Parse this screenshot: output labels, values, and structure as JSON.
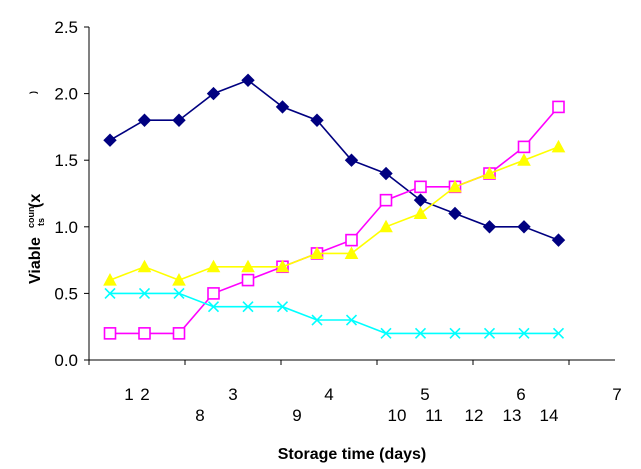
{
  "chart_data": {
    "type": "line",
    "title": "",
    "xlabel": "Storage time (days)",
    "ylabel_parts": [
      "Viable",
      "coun",
      "ts",
      "(x",
      ")"
    ],
    "ylim": [
      0.0,
      2.5
    ],
    "yticks": [
      "0.0",
      "0.5",
      "1.0",
      "1.5",
      "2.0",
      "2.5"
    ],
    "grid": false,
    "legend": "none",
    "x_tick_labels_row1": [
      "1",
      "2",
      "3",
      "4",
      "5",
      "6",
      "7"
    ],
    "x_tick_labels_row2": [
      "8",
      "9",
      "10",
      "11",
      "12",
      "13",
      "14"
    ],
    "x": [
      1,
      2,
      3,
      4,
      5,
      6,
      7,
      8,
      9,
      10,
      11,
      12,
      13,
      14
    ],
    "series": [
      {
        "color": "#000080",
        "marker": "diamond",
        "values": [
          1.65,
          1.8,
          1.8,
          2.0,
          2.1,
          1.9,
          1.8,
          1.5,
          1.4,
          1.2,
          1.1,
          1.0,
          1.0,
          0.9
        ]
      },
      {
        "color": "#FF00FF",
        "marker": "open-square",
        "values": [
          0.2,
          0.2,
          0.2,
          0.5,
          0.6,
          0.7,
          0.8,
          0.9,
          1.2,
          1.3,
          1.3,
          1.4,
          1.6,
          1.9
        ]
      },
      {
        "color": "#FFFF00",
        "marker": "triangle",
        "values": [
          0.6,
          0.7,
          0.6,
          0.7,
          0.7,
          0.7,
          0.8,
          0.8,
          1.0,
          1.1,
          1.3,
          1.4,
          1.5,
          1.6
        ]
      },
      {
        "color": "#00FFFF",
        "marker": "x",
        "values": [
          0.5,
          0.5,
          0.5,
          0.4,
          0.4,
          0.4,
          0.3,
          0.3,
          0.2,
          0.2,
          0.2,
          0.2,
          0.2,
          0.2
        ]
      }
    ]
  }
}
